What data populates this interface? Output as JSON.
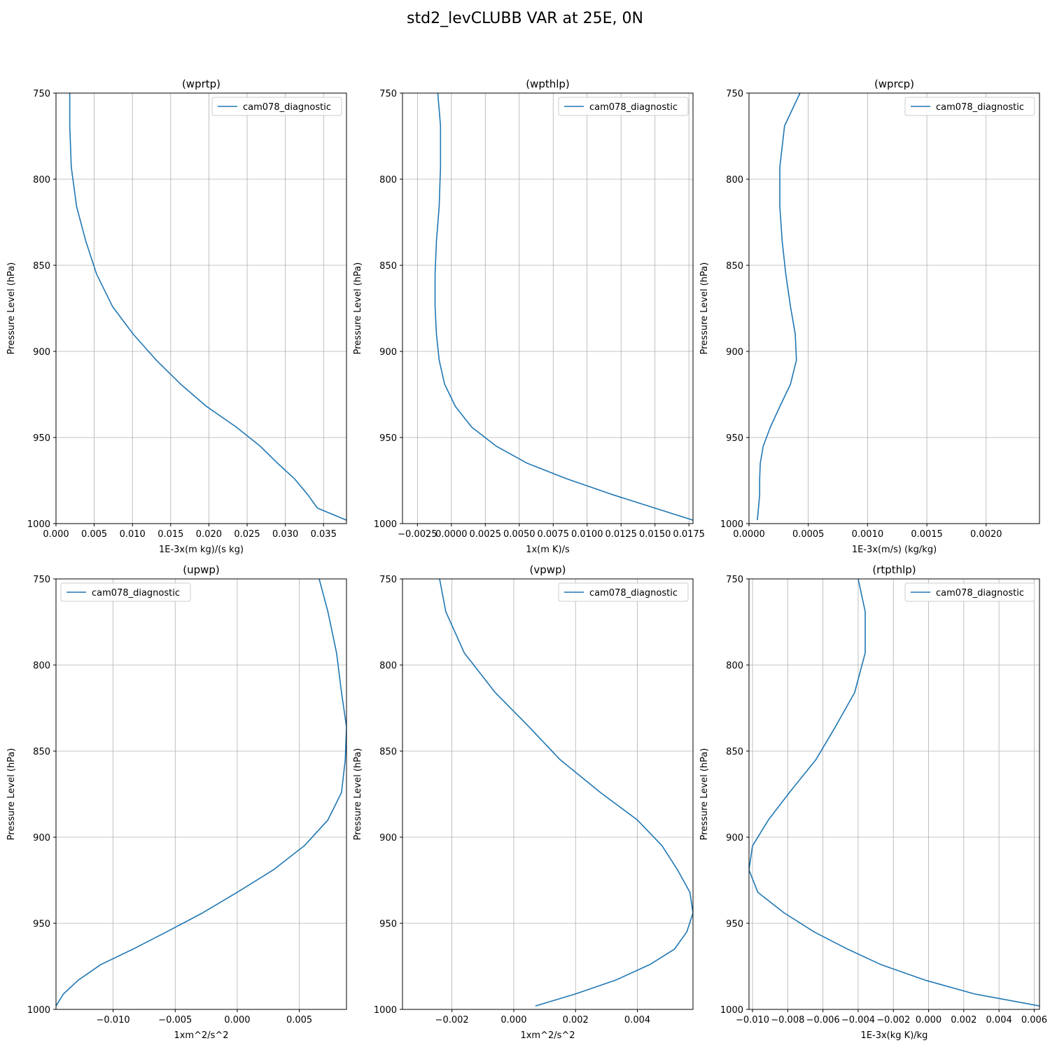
{
  "figure": {
    "suptitle": "std2_levCLUBB VAR at 25E, 0N"
  },
  "chart_data": [
    {
      "type": "line",
      "title": "(wprtp)",
      "xlabel": "1E-3x(m kg)/(s kg)",
      "ylabel": "Pressure Level (hPa)",
      "xlim": [
        0.0,
        0.038
      ],
      "ylim": [
        1000,
        750
      ],
      "y_inverted": true,
      "xticks": [
        0.0,
        0.005,
        0.01,
        0.015,
        0.02,
        0.025,
        0.03,
        0.035
      ],
      "xtick_labels": [
        "0.000",
        "0.005",
        "0.010",
        "0.015",
        "0.020",
        "0.025",
        "0.030",
        "0.035"
      ],
      "yticks": [
        750,
        800,
        850,
        900,
        950,
        1000
      ],
      "ytick_labels": [
        "750",
        "800",
        "850",
        "900",
        "950",
        "1000"
      ],
      "grid": true,
      "legend_position": "upper right",
      "series": [
        {
          "name": "cam078_diagnostic",
          "color": "#1f77b4",
          "x": [
            0.0018,
            0.0018,
            0.002,
            0.0027,
            0.0039,
            0.0053,
            0.0074,
            0.0101,
            0.0131,
            0.0163,
            0.0197,
            0.0236,
            0.0267,
            0.029,
            0.0312,
            0.0329,
            0.0342,
            0.038
          ],
          "y": [
            750,
            769,
            793,
            816,
            836,
            855,
            874,
            890,
            905,
            919,
            932,
            944,
            955,
            965,
            974,
            983,
            991,
            998
          ]
        }
      ]
    },
    {
      "type": "line",
      "title": "(wpthlp)",
      "xlabel": "1x(m K)/s",
      "ylabel": "Pressure Level (hPa)",
      "xlim": [
        -0.0036,
        0.0178
      ],
      "ylim": [
        1000,
        750
      ],
      "y_inverted": true,
      "xticks": [
        -0.0025,
        0.0,
        0.0025,
        0.005,
        0.0075,
        0.01,
        0.0125,
        0.015,
        0.0175
      ],
      "xtick_labels": [
        "−0.0025",
        "0.0000",
        "0.0025",
        "0.0050",
        "0.0075",
        "0.0100",
        "0.0125",
        "0.0150",
        "0.0175"
      ],
      "yticks": [
        750,
        800,
        850,
        900,
        950,
        1000
      ],
      "ytick_labels": [
        "750",
        "800",
        "850",
        "900",
        "950",
        "1000"
      ],
      "grid": true,
      "legend_position": "upper right",
      "series": [
        {
          "name": "cam078_diagnostic",
          "color": "#1f77b4",
          "x": [
            -0.001,
            -0.0008,
            -0.0008,
            -0.0009,
            -0.0011,
            -0.0012,
            -0.0012,
            -0.0011,
            -0.0009,
            -0.0005,
            0.0003,
            0.0015,
            0.0033,
            0.0056,
            0.0085,
            0.0118,
            0.015,
            0.0178
          ],
          "y": [
            750,
            769,
            793,
            816,
            836,
            855,
            874,
            890,
            905,
            919,
            932,
            944,
            955,
            965,
            974,
            983,
            991,
            998
          ]
        }
      ]
    },
    {
      "type": "line",
      "title": "(wprcp)",
      "xlabel": "1E-3x(m/s) (kg/kg)",
      "ylabel": "Pressure Level (hPa)",
      "xlim": [
        0.0,
        0.00245
      ],
      "ylim": [
        1000,
        750
      ],
      "y_inverted": true,
      "xticks": [
        0.0,
        0.0005,
        0.001,
        0.0015,
        0.002
      ],
      "xtick_labels": [
        "0.0000",
        "0.0005",
        "0.0010",
        "0.0015",
        "0.0020"
      ],
      "yticks": [
        750,
        800,
        850,
        900,
        950,
        1000
      ],
      "ytick_labels": [
        "750",
        "800",
        "850",
        "900",
        "950",
        "1000"
      ],
      "grid": true,
      "legend_position": "upper right",
      "series": [
        {
          "name": "cam078_diagnostic",
          "color": "#1f77b4",
          "x": [
            0.00043,
            0.0003,
            0.00026,
            0.00026,
            0.00028,
            0.00031,
            0.00035,
            0.00039,
            0.0004,
            0.00035,
            0.00026,
            0.00018,
            0.00012,
            9.5e-05,
            9e-05,
            9e-05,
            8e-05,
            7e-05
          ],
          "y": [
            750,
            769,
            793,
            816,
            836,
            855,
            874,
            890,
            905,
            919,
            932,
            944,
            955,
            965,
            974,
            983,
            991,
            998
          ]
        }
      ]
    },
    {
      "type": "line",
      "title": "(upwp)",
      "xlabel": "1xm^2/s^2",
      "ylabel": "Pressure Level (hPa)",
      "xlim": [
        -0.0146,
        0.0088
      ],
      "ylim": [
        1000,
        750
      ],
      "y_inverted": true,
      "xticks": [
        -0.01,
        -0.005,
        0.0,
        0.005
      ],
      "xtick_labels": [
        "−0.010",
        "−0.005",
        "0.000",
        "0.005"
      ],
      "yticks": [
        750,
        800,
        850,
        900,
        950,
        1000
      ],
      "ytick_labels": [
        "750",
        "800",
        "850",
        "900",
        "950",
        "1000"
      ],
      "grid": true,
      "legend_position": "upper left",
      "series": [
        {
          "name": "cam078_diagnostic",
          "color": "#1f77b4",
          "x": [
            0.0066,
            0.0073,
            0.008,
            0.0084,
            0.0088,
            0.0087,
            0.0084,
            0.0073,
            0.0054,
            0.0029,
            0.0,
            -0.0028,
            -0.0057,
            -0.0084,
            -0.011,
            -0.0128,
            -0.014,
            -0.0146
          ],
          "y": [
            750,
            769,
            793,
            816,
            836,
            855,
            874,
            890,
            905,
            919,
            932,
            944,
            955,
            965,
            974,
            983,
            991,
            998
          ]
        }
      ]
    },
    {
      "type": "line",
      "title": "(vpwp)",
      "xlabel": "1xm^2/s^2",
      "ylabel": "Pressure Level (hPa)",
      "xlim": [
        -0.0036,
        0.0058
      ],
      "ylim": [
        1000,
        750
      ],
      "y_inverted": true,
      "xticks": [
        -0.002,
        0.0,
        0.002,
        0.004
      ],
      "xtick_labels": [
        "−0.002",
        "0.000",
        "0.002",
        "0.004"
      ],
      "yticks": [
        750,
        800,
        850,
        900,
        950,
        1000
      ],
      "ytick_labels": [
        "750",
        "800",
        "850",
        "900",
        "950",
        "1000"
      ],
      "grid": true,
      "legend_position": "upper right",
      "series": [
        {
          "name": "cam078_diagnostic",
          "color": "#1f77b4",
          "x": [
            -0.0024,
            -0.0022,
            -0.0016,
            -0.0006,
            0.0005,
            0.0015,
            0.0028,
            0.004,
            0.0048,
            0.0053,
            0.0057,
            0.0058,
            0.0056,
            0.0052,
            0.0044,
            0.0033,
            0.002,
            0.0007
          ],
          "y": [
            750,
            769,
            793,
            816,
            836,
            855,
            874,
            890,
            905,
            919,
            932,
            944,
            955,
            965,
            974,
            983,
            991,
            998
          ]
        }
      ]
    },
    {
      "type": "line",
      "title": "(rtpthlp)",
      "xlabel": "1E-3x(kg K)/kg",
      "ylabel": "Pressure Level (hPa)",
      "xlim": [
        -0.0102,
        0.0063
      ],
      "ylim": [
        1000,
        750
      ],
      "y_inverted": true,
      "xticks": [
        -0.01,
        -0.008,
        -0.006,
        -0.004,
        -0.002,
        0.0,
        0.002,
        0.004,
        0.006
      ],
      "xtick_labels": [
        "−0.010",
        "−0.008",
        "−0.006",
        "−0.004",
        "−0.002",
        "0.000",
        "0.002",
        "0.004",
        "0.006"
      ],
      "yticks": [
        750,
        800,
        850,
        900,
        950,
        1000
      ],
      "ytick_labels": [
        "750",
        "800",
        "850",
        "900",
        "950",
        "1000"
      ],
      "grid": true,
      "legend_position": "upper right",
      "series": [
        {
          "name": "cam078_diagnostic",
          "color": "#1f77b4",
          "x": [
            -0.004,
            -0.0036,
            -0.0036,
            -0.0042,
            -0.0053,
            -0.0064,
            -0.0079,
            -0.0091,
            -0.01,
            -0.0102,
            -0.0097,
            -0.0082,
            -0.0065,
            -0.0046,
            -0.0027,
            -0.0002,
            0.0026,
            0.0063
          ],
          "y": [
            750,
            769,
            793,
            816,
            836,
            855,
            874,
            890,
            905,
            919,
            932,
            944,
            955,
            965,
            974,
            983,
            991,
            998
          ]
        }
      ]
    }
  ]
}
